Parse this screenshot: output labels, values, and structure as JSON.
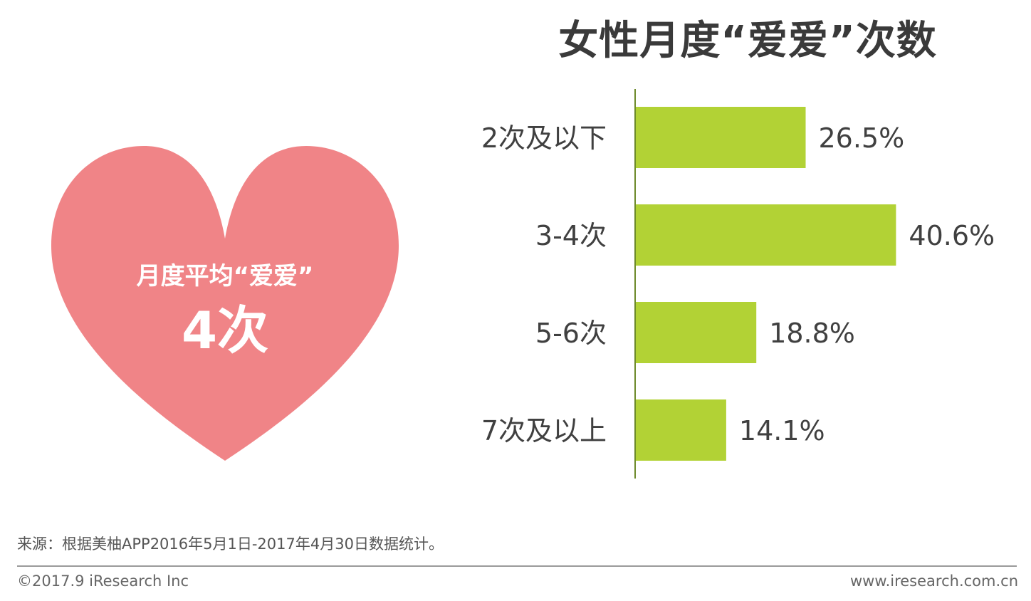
{
  "title": "女性月度“爱爱”次数",
  "heart": {
    "line1": "月度平均“爱爱”",
    "line2": "4次",
    "color": "#f08487"
  },
  "chart_data": {
    "type": "bar",
    "orientation": "horizontal",
    "categories": [
      "2次及以下",
      "3-4次",
      "5-6次",
      "7次及以上"
    ],
    "values": [
      26.5,
      40.6,
      18.8,
      14.1
    ],
    "value_labels": [
      "26.5%",
      "40.6%",
      "18.8%",
      "14.1%"
    ],
    "bar_color": "#b2d235",
    "axis_color": "#6d8a2a",
    "xlim": [
      0,
      45
    ],
    "grid": false
  },
  "footer": {
    "source": "来源：根据美柚APP2016年5月1日-2017年4月30日数据统计。",
    "copyright": "©2017.9 iResearch Inc",
    "website": "www.iresearch.com.cn"
  }
}
